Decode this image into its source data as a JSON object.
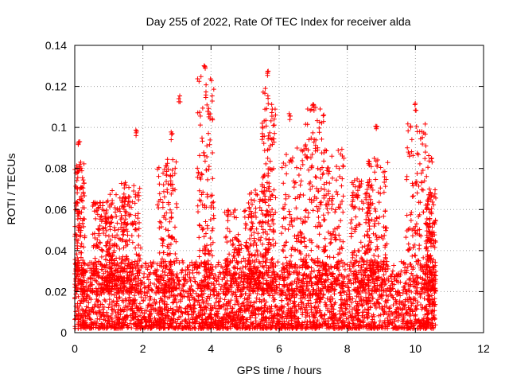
{
  "chart_data": {
    "type": "scatter",
    "title": "Day 255 of 2022, Rate Of TEC Index for receiver alda",
    "xlabel": "GPS time / hours",
    "ylabel": "ROTI / TECUs",
    "xlim": [
      0,
      12
    ],
    "ylim": [
      0,
      0.14
    ],
    "x_ticks": [
      "0",
      "2",
      "4",
      "6",
      "8",
      "10",
      "12"
    ],
    "y_ticks": [
      "0",
      "0.02",
      "0.04",
      "0.06",
      "0.08",
      "0.1",
      "0.12",
      "0.14"
    ],
    "grid": true,
    "marker": "plus",
    "color": "#ff0000",
    "x_range_observed": [
      0.0,
      10.6
    ],
    "y_range_observed": [
      0.0,
      0.133
    ],
    "notable_points": [
      {
        "x": 3.8,
        "y": 0.132
      },
      {
        "x": 5.65,
        "y": 0.128
      },
      {
        "x": 3.08,
        "y": 0.116
      },
      {
        "x": 10.0,
        "y": 0.112
      },
      {
        "x": 7.0,
        "y": 0.113
      },
      {
        "x": 1.8,
        "y": 0.1
      },
      {
        "x": 8.85,
        "y": 0.101
      },
      {
        "x": 0.12,
        "y": 0.094
      },
      {
        "x": 2.85,
        "y": 0.098
      },
      {
        "x": 3.95,
        "y": 0.108
      },
      {
        "x": 5.55,
        "y": 0.077
      },
      {
        "x": 6.3,
        "y": 0.107
      }
    ],
    "clusters": [
      {
        "x_center": 0.15,
        "x_spread": 0.15,
        "y_max": 0.085
      },
      {
        "x_center": 0.8,
        "x_spread": 0.3,
        "y_max": 0.065
      },
      {
        "x_center": 1.2,
        "x_spread": 0.3,
        "y_max": 0.07
      },
      {
        "x_center": 1.65,
        "x_spread": 0.3,
        "y_max": 0.075
      },
      {
        "x_center": 2.7,
        "x_spread": 0.3,
        "y_max": 0.085
      },
      {
        "x_center": 3.85,
        "x_spread": 0.25,
        "y_max": 0.125
      },
      {
        "x_center": 4.8,
        "x_spread": 0.4,
        "y_max": 0.06
      },
      {
        "x_center": 5.4,
        "x_spread": 0.3,
        "y_max": 0.07
      },
      {
        "x_center": 5.7,
        "x_spread": 0.2,
        "y_max": 0.12
      },
      {
        "x_center": 6.4,
        "x_spread": 0.35,
        "y_max": 0.09
      },
      {
        "x_center": 7.05,
        "x_spread": 0.3,
        "y_max": 0.11
      },
      {
        "x_center": 7.6,
        "x_spread": 0.3,
        "y_max": 0.09
      },
      {
        "x_center": 8.4,
        "x_spread": 0.3,
        "y_max": 0.075
      },
      {
        "x_center": 8.9,
        "x_spread": 0.3,
        "y_max": 0.085
      },
      {
        "x_center": 10.1,
        "x_spread": 0.4,
        "y_max": 0.105
      },
      {
        "x_center": 10.45,
        "x_spread": 0.15,
        "y_max": 0.07
      }
    ],
    "baseline": {
      "x_min": 0.0,
      "x_max": 10.6,
      "y_band": [
        0.002,
        0.035
      ]
    }
  }
}
